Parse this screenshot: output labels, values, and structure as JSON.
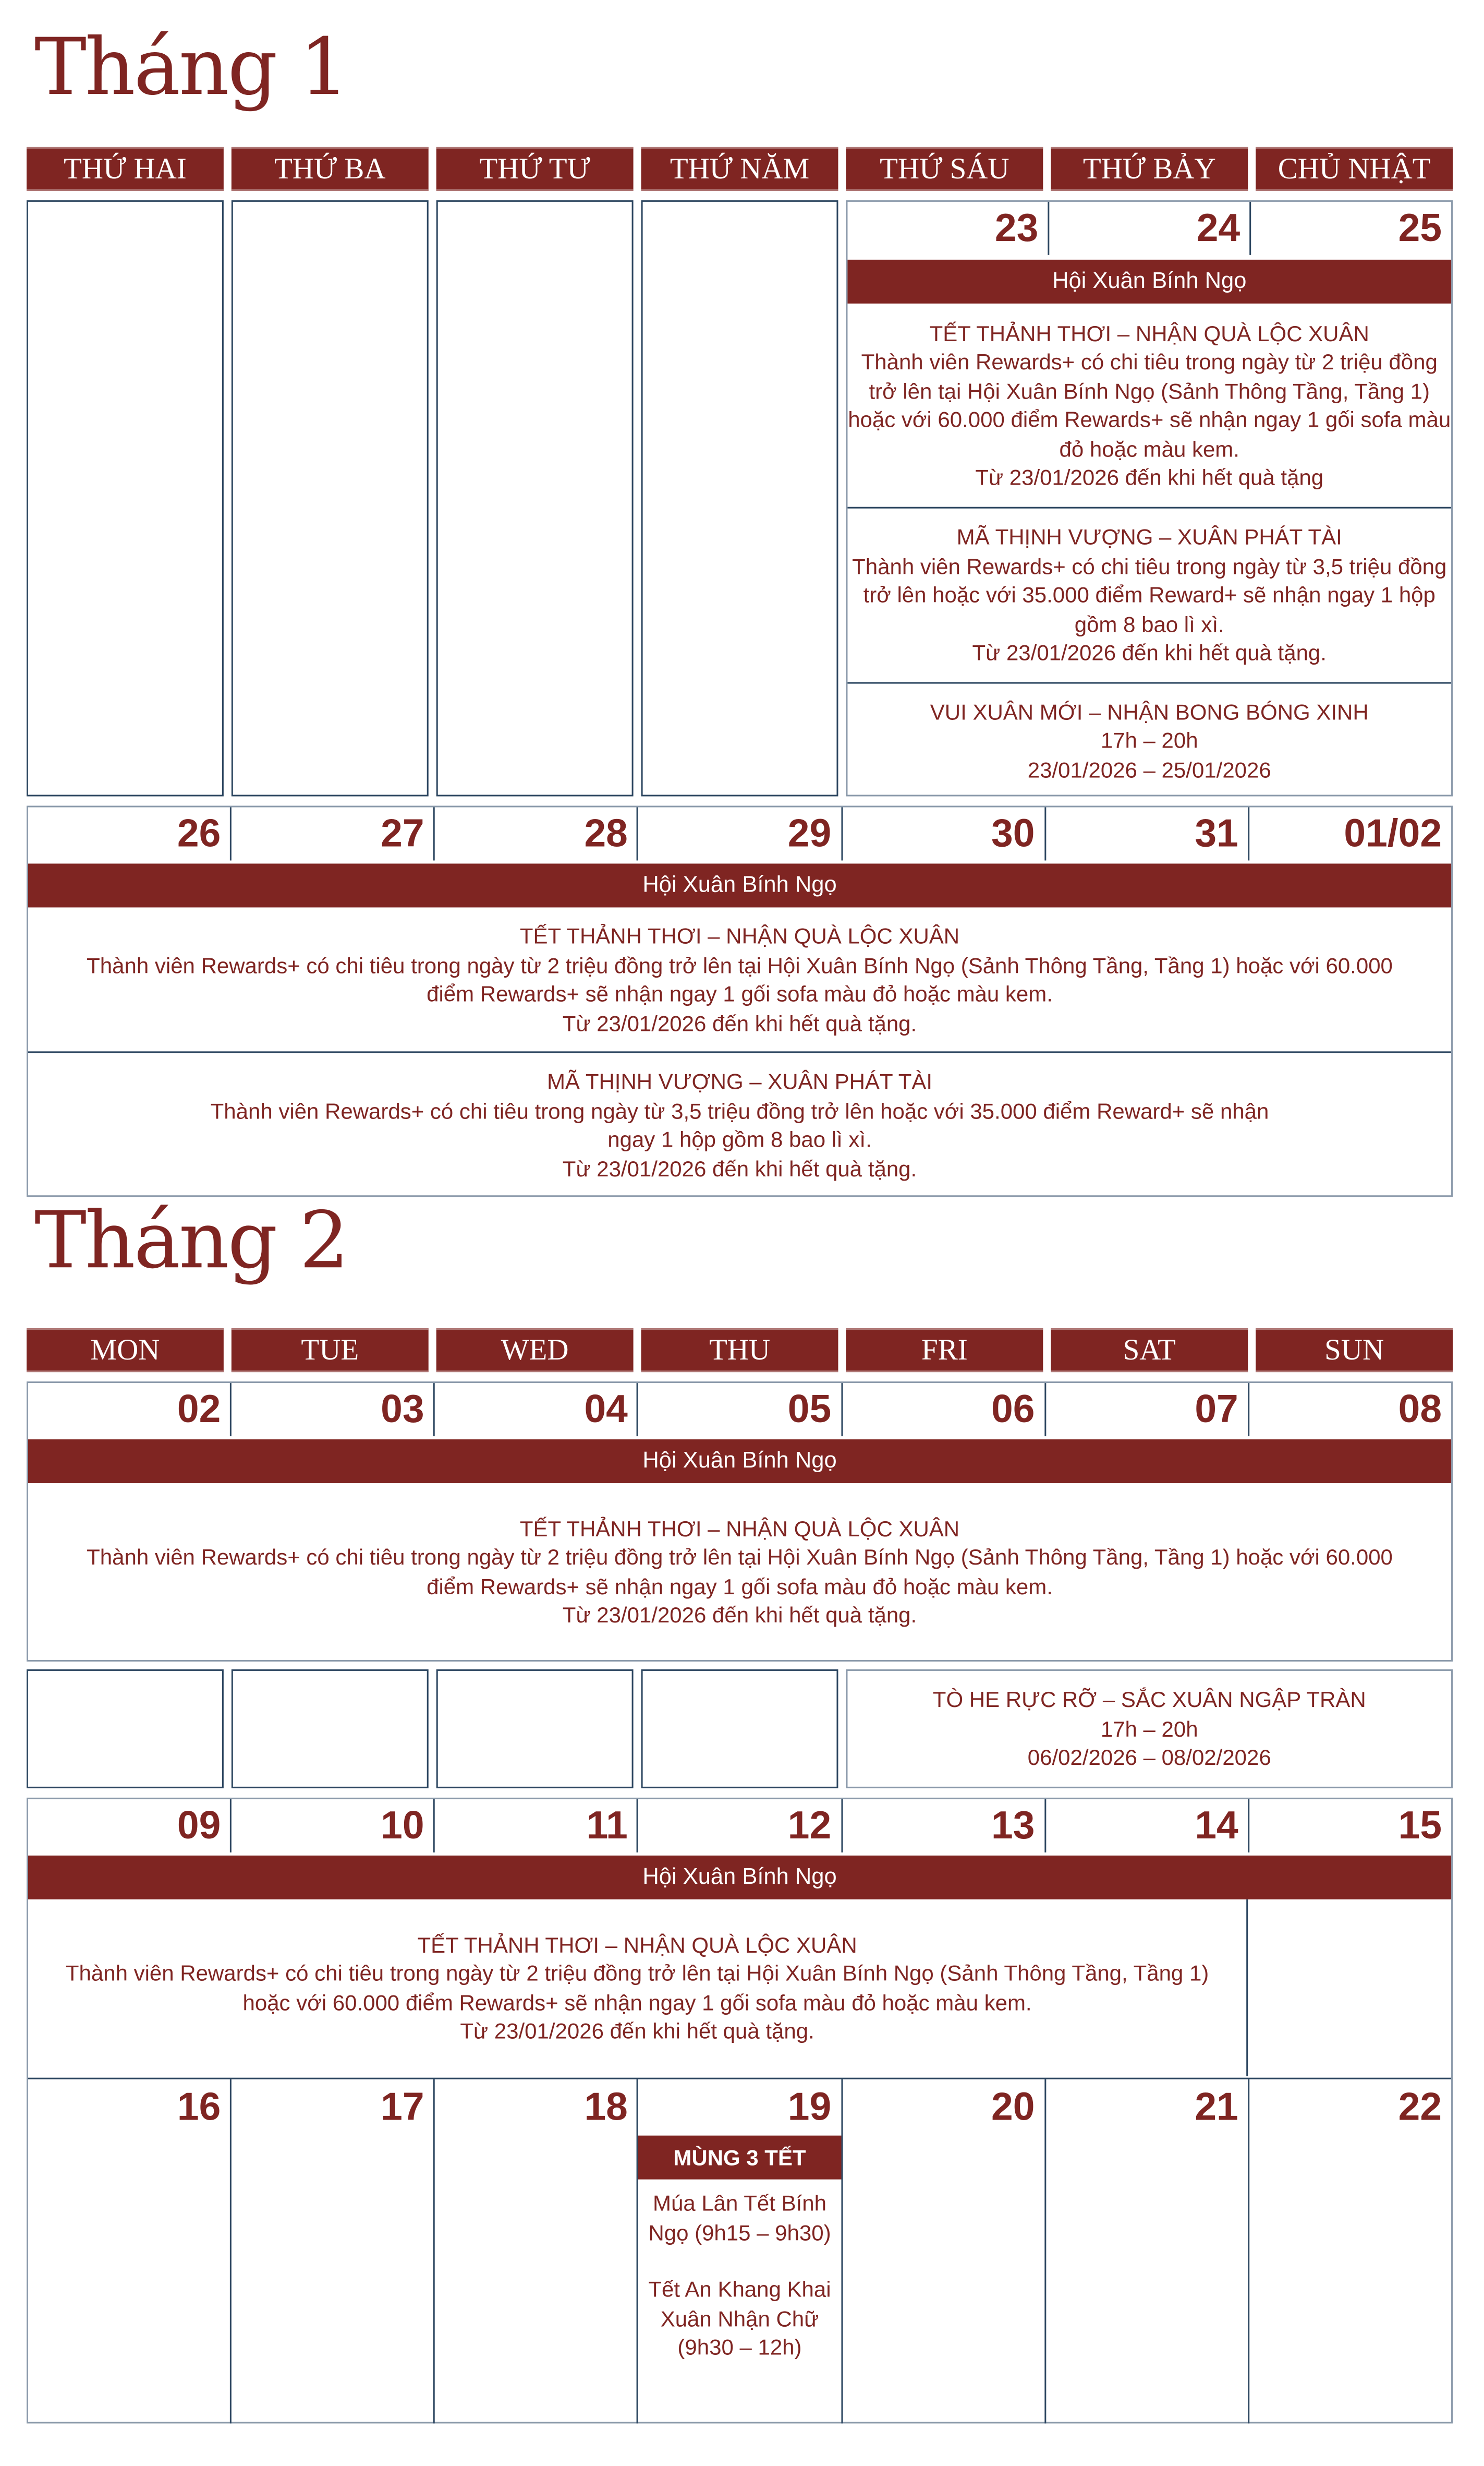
{
  "colors": {
    "accent": "#7f2522",
    "border": "#2c4660"
  },
  "jan": {
    "title": "Tháng 1",
    "weekdays": [
      "THỨ HAI",
      "THỨ BA",
      "THỨ TƯ",
      "THỨ NĂM",
      "THỨ SÁU",
      "THỨ BẢY",
      "CHỦ NHẬT"
    ],
    "week1": {
      "dates": [
        "23",
        "24",
        "25"
      ],
      "banner": "Hội Xuân Bính Ngọ",
      "events": [
        {
          "title": "TẾT THẢNH THƠI – NHẬN QUÀ LỘC XUÂN",
          "lines": [
            "Thành viên Rewards+ có chi tiêu trong ngày từ 2 triệu đồng trở lên tại Hội Xuân Bính Ngọ (Sảnh Thông Tầng, Tầng 1) hoặc với 60.000 điểm Rewards+ sẽ nhận ngay 1 gối sofa màu đỏ hoặc màu kem.",
            "Từ 23/01/2026 đến khi hết quà tặng"
          ]
        },
        {
          "title": "MÃ THỊNH VƯỢNG – XUÂN PHÁT TÀI",
          "lines": [
            "Thành viên Rewards+ có chi tiêu trong ngày từ 3,5 triệu đồng trở lên hoặc với 35.000 điểm Reward+ sẽ nhận ngay 1 hộp gồm 8 bao lì xì.",
            "Từ 23/01/2026 đến khi hết quà tặng."
          ]
        },
        {
          "title": "VUI XUÂN MỚI – NHẬN BONG BÓNG XINH",
          "lines": [
            "17h – 20h",
            "23/01/2026 – 25/01/2026"
          ]
        }
      ]
    },
    "week2": {
      "dates": [
        "26",
        "27",
        "28",
        "29",
        "30",
        "31",
        "01/02"
      ],
      "banner": "Hội Xuân Bính Ngọ",
      "events": [
        {
          "title": "TẾT THẢNH THƠI – NHẬN QUÀ LỘC XUÂN",
          "lines": [
            "Thành viên Rewards+ có chi tiêu trong ngày từ 2 triệu đồng trở lên tại Hội Xuân Bính Ngọ (Sảnh Thông Tầng, Tầng 1) hoặc với 60.000 điểm Rewards+ sẽ nhận ngay 1 gối sofa màu đỏ hoặc màu kem.",
            "Từ 23/01/2026 đến khi hết quà tặng."
          ]
        },
        {
          "title": "MÃ THỊNH VƯỢNG – XUÂN PHÁT TÀI",
          "lines": [
            "Thành viên Rewards+ có chi tiêu trong ngày từ 3,5 triệu đồng trở lên hoặc với 35.000 điểm Reward+ sẽ nhận ngay 1 hộp gồm 8 bao lì xì.",
            "Từ 23/01/2026 đến khi hết quà tặng."
          ]
        }
      ]
    }
  },
  "feb": {
    "title": "Tháng 2",
    "weekdays": [
      "MON",
      "TUE",
      "WED",
      "THU",
      "FRI",
      "SAT",
      "SUN"
    ],
    "week1": {
      "dates": [
        "02",
        "03",
        "04",
        "05",
        "06",
        "07",
        "08"
      ],
      "banner": "Hội Xuân Bính Ngọ",
      "event": {
        "title": "TẾT THẢNH THƠI – NHẬN QUÀ LỘC XUÂN",
        "lines": [
          "Thành viên Rewards+ có chi tiêu trong ngày từ 2 triệu đồng trở lên tại Hội Xuân Bính Ngọ (Sảnh Thông Tầng, Tầng 1) hoặc với 60.000 điểm Rewards+ sẽ nhận ngay 1 gối sofa màu đỏ hoặc màu kem.",
          "Từ 23/01/2026 đến khi hết quà tặng."
        ]
      },
      "extra": {
        "title": "TÒ HE RỰC RỠ – SẮC XUÂN NGẬP TRÀN",
        "lines": [
          "17h – 20h",
          "06/02/2026 – 08/02/2026"
        ]
      }
    },
    "week2": {
      "dates": [
        "09",
        "10",
        "11",
        "12",
        "13",
        "14",
        "15"
      ],
      "banner": "Hội Xuân Bính Ngọ",
      "event": {
        "title": "TẾT THẢNH THƠI – NHẬN QUÀ LỘC XUÂN",
        "lines": [
          "Thành viên Rewards+ có chi tiêu trong ngày từ 2 triệu đồng trở lên tại Hội Xuân Bính Ngọ (Sảnh Thông Tầng, Tầng 1) hoặc với 60.000 điểm Rewards+ sẽ nhận ngay 1 gối sofa màu đỏ hoặc màu kem.",
          "Từ 23/01/2026 đến khi hết quà tặng."
        ]
      }
    },
    "week3": {
      "dates": [
        "16",
        "17",
        "18",
        "19",
        "20",
        "21",
        "22"
      ],
      "special": {
        "banner": "MÙNG 3 TẾT",
        "lines": [
          "Múa Lân Tết Bính Ngọ (9h15 – 9h30)",
          "Tết An Khang Khai Xuân Nhận Chữ (9h30 – 12h)"
        ]
      }
    }
  }
}
